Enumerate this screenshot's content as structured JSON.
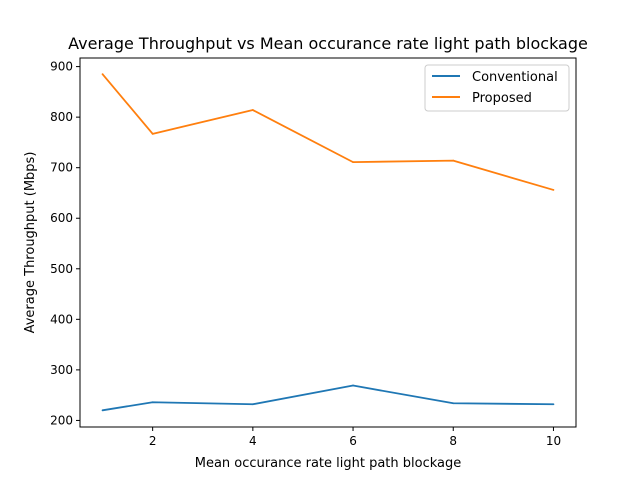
{
  "chart_data": {
    "type": "line",
    "title": "Average Throughput vs Mean occurance rate light path blockage",
    "xlabel": "Mean occurance rate light path blockage",
    "ylabel": "Average Throughput (Mbps)",
    "x": [
      1,
      2,
      4,
      6,
      8,
      10
    ],
    "xlim": [
      0.55,
      10.45
    ],
    "ylim": [
      187,
      917
    ],
    "xticks": [
      2,
      4,
      6,
      8,
      10
    ],
    "yticks": [
      200,
      300,
      400,
      500,
      600,
      700,
      800,
      900
    ],
    "grid": false,
    "legend_position": "top-right",
    "series": [
      {
        "name": "Conventional",
        "color": "#1f77b4",
        "values": [
          220,
          236,
          232,
          269,
          234,
          232
        ]
      },
      {
        "name": "Proposed",
        "color": "#ff7f0e",
        "values": [
          885,
          767,
          814,
          711,
          714,
          656
        ]
      }
    ]
  }
}
